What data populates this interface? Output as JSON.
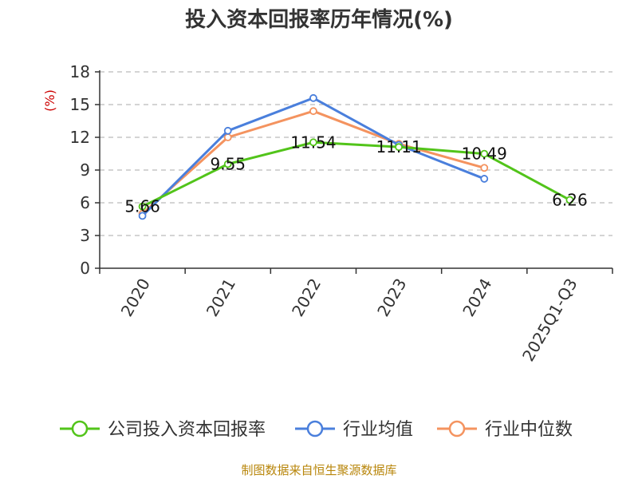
{
  "chart_data": {
    "type": "line",
    "title": "投入资本回报率历年情况(%)",
    "ylabel": "(%)",
    "xlabel": "",
    "categories": [
      "2020",
      "2021",
      "2022",
      "2023",
      "2024",
      "2025Q1-Q3"
    ],
    "yticks": [
      "0",
      "3",
      "6",
      "9",
      "12",
      "15",
      "18"
    ],
    "ylim": [
      0,
      18
    ],
    "grid": true,
    "legend_position": "bottom",
    "series": [
      {
        "name": "公司投入资本回报率",
        "color": "#52c41a",
        "values": [
          5.66,
          9.55,
          11.54,
          11.11,
          10.49,
          6.26
        ],
        "labels": [
          "5.66",
          "9.55",
          "11.54",
          "11.11",
          "10.49",
          "6.26"
        ]
      },
      {
        "name": "行业均值",
        "color": "#4a7fdc",
        "values": [
          4.8,
          12.6,
          15.6,
          11.3,
          8.2,
          null
        ]
      },
      {
        "name": "行业中位数",
        "color": "#f4935f",
        "values": [
          5.0,
          12.0,
          14.4,
          11.4,
          9.2,
          null
        ]
      }
    ],
    "source": "制图数据来自恒生聚源数据库"
  }
}
